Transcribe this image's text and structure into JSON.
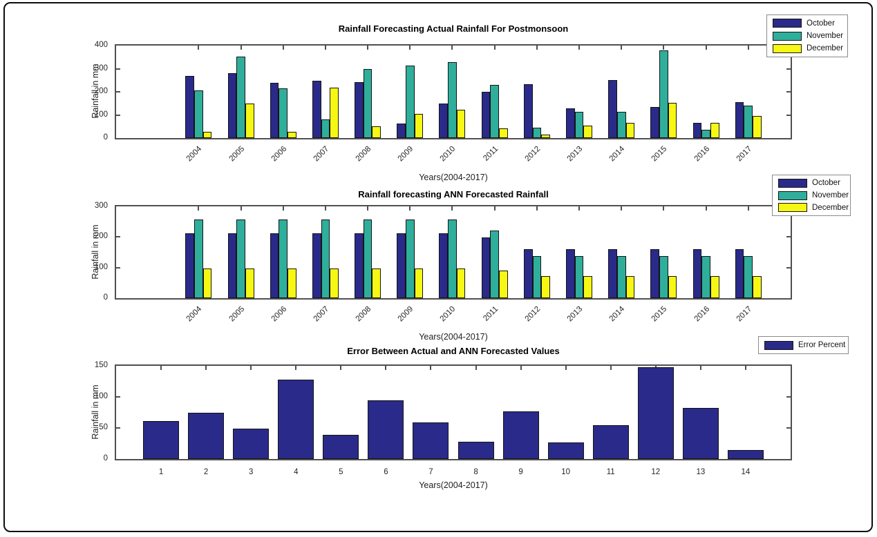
{
  "figure": {
    "background": "#ffffff",
    "frame_color": "#0b0b0b",
    "axis_color": "#4f4f4f",
    "bar_edge_color": "#141414"
  },
  "palette": {
    "october": "#2a2a8a",
    "november": "#2fae9b",
    "december": "#f7f714",
    "error": "#2a2a8a"
  },
  "chart_data": [
    {
      "type": "bar",
      "title": "Rainfall Forecasting Actual Rainfall For Postmonsoon",
      "xlabel": "Years(2004-2017)",
      "ylabel": "Rainfall in mm",
      "ylim": [
        0,
        400
      ],
      "yticks": [
        0,
        100,
        200,
        300,
        400
      ],
      "grid": false,
      "legend_position": "top-right",
      "xtick_rotation": 45,
      "categories": [
        "2004",
        "2005",
        "2006",
        "2007",
        "2008",
        "2009",
        "2010",
        "2011",
        "2012",
        "2013",
        "2014",
        "2015",
        "2016",
        "2017"
      ],
      "series": [
        {
          "name": "October",
          "color_key": "october",
          "values": [
            270,
            281,
            240,
            249,
            243,
            63,
            148,
            201,
            234,
            128,
            252,
            133,
            66,
            156
          ]
        },
        {
          "name": "November",
          "color_key": "november",
          "values": [
            205,
            353,
            214,
            80,
            298,
            314,
            329,
            231,
            46,
            112,
            113,
            379,
            35,
            141
          ]
        },
        {
          "name": "December",
          "color_key": "december",
          "values": [
            26,
            148,
            28,
            219,
            51,
            105,
            123,
            43,
            14,
            55,
            66,
            153,
            67,
            97
          ]
        }
      ]
    },
    {
      "type": "bar",
      "title": "Rainfall forecasting ANN Forecasted Rainfall",
      "xlabel": "Years(2004-2017)",
      "ylabel": "Rainfall in mm",
      "ylim": [
        0,
        300
      ],
      "yticks": [
        0,
        100,
        200,
        300
      ],
      "grid": false,
      "legend_position": "top-right",
      "xtick_rotation": 45,
      "categories": [
        "2004",
        "2005",
        "2006",
        "2007",
        "2008",
        "2009",
        "2010",
        "2011",
        "2012",
        "2013",
        "2014",
        "2015",
        "2016",
        "2017"
      ],
      "series": [
        {
          "name": "October",
          "color_key": "october",
          "values": [
            213,
            213,
            213,
            213,
            213,
            213,
            213,
            198,
            161,
            161,
            161,
            161,
            161,
            161
          ]
        },
        {
          "name": "November",
          "color_key": "november",
          "values": [
            257,
            257,
            257,
            257,
            257,
            257,
            257,
            222,
            138,
            138,
            138,
            138,
            138,
            138
          ]
        },
        {
          "name": "December",
          "color_key": "december",
          "values": [
            96,
            96,
            96,
            96,
            96,
            96,
            96,
            90,
            73,
            73,
            73,
            73,
            73,
            73
          ]
        }
      ]
    },
    {
      "type": "bar",
      "title": "Error Between Actual and ANN Forecasted Values",
      "xlabel": "Years(2004-2017)",
      "ylabel": "Rainfall in mm",
      "ylim": [
        0,
        150
      ],
      "yticks": [
        0,
        50,
        100,
        150
      ],
      "grid": false,
      "legend_position": "top-right",
      "xtick_rotation": 0,
      "categories": [
        "1",
        "2",
        "3",
        "4",
        "5",
        "6",
        "7",
        "8",
        "9",
        "10",
        "11",
        "12",
        "13",
        "14"
      ],
      "series": [
        {
          "name": "Error Percent",
          "color_key": "error",
          "values": [
            61,
            75,
            49,
            128,
            39,
            94,
            59,
            28,
            77,
            27,
            54,
            148,
            82,
            15
          ]
        }
      ]
    }
  ]
}
